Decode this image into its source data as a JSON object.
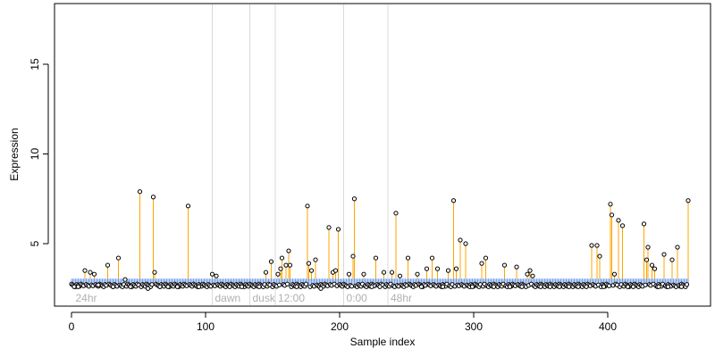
{
  "chart_data": {
    "type": "scatter",
    "title": "",
    "xlabel": "Sample index",
    "ylabel": "Expression",
    "xlim": [
      0,
      460
    ],
    "ylim": [
      2,
      18
    ],
    "x_ticks": [
      0,
      100,
      200,
      300,
      400
    ],
    "y_ticks": [
      5,
      10,
      15
    ],
    "baseline": 2.9,
    "grid": false,
    "colors": {
      "stem": "#ffa500",
      "baseline_marker": "#6495ed",
      "point": "#000000",
      "divider": "#d9d9d9",
      "timepoint_label": "#b0b0b0"
    },
    "timepoints": [
      {
        "x": 3,
        "label": "24hr"
      },
      {
        "x": 107,
        "label": "dawn"
      },
      {
        "x": 135,
        "label": "dusk"
      },
      {
        "x": 154,
        "label": "12:00"
      },
      {
        "x": 205,
        "label": "0:00"
      },
      {
        "x": 238,
        "label": "48hr"
      }
    ],
    "dividers": [
      105,
      133,
      152,
      203,
      236
    ],
    "spikes": [
      {
        "x": 10,
        "y": 3.5
      },
      {
        "x": 14,
        "y": 3.4
      },
      {
        "x": 17,
        "y": 3.3
      },
      {
        "x": 27,
        "y": 3.8
      },
      {
        "x": 35,
        "y": 4.2
      },
      {
        "x": 40,
        "y": 3.0
      },
      {
        "x": 51,
        "y": 7.9
      },
      {
        "x": 61,
        "y": 7.6
      },
      {
        "x": 62,
        "y": 3.4
      },
      {
        "x": 87,
        "y": 7.1
      },
      {
        "x": 105,
        "y": 3.3
      },
      {
        "x": 108,
        "y": 3.2
      },
      {
        "x": 145,
        "y": 3.4
      },
      {
        "x": 149,
        "y": 4.0
      },
      {
        "x": 154,
        "y": 3.3
      },
      {
        "x": 156,
        "y": 3.6
      },
      {
        "x": 157,
        "y": 4.2
      },
      {
        "x": 160,
        "y": 3.8
      },
      {
        "x": 162,
        "y": 4.6
      },
      {
        "x": 163,
        "y": 3.8
      },
      {
        "x": 176,
        "y": 7.1
      },
      {
        "x": 177,
        "y": 3.9
      },
      {
        "x": 179,
        "y": 3.5
      },
      {
        "x": 182,
        "y": 4.1
      },
      {
        "x": 192,
        "y": 5.9
      },
      {
        "x": 195,
        "y": 3.4
      },
      {
        "x": 197,
        "y": 3.5
      },
      {
        "x": 199,
        "y": 5.8
      },
      {
        "x": 207,
        "y": 3.3
      },
      {
        "x": 210,
        "y": 4.3
      },
      {
        "x": 211,
        "y": 7.5
      },
      {
        "x": 218,
        "y": 3.3
      },
      {
        "x": 227,
        "y": 4.2
      },
      {
        "x": 233,
        "y": 3.4
      },
      {
        "x": 239,
        "y": 3.4
      },
      {
        "x": 242,
        "y": 6.7
      },
      {
        "x": 245,
        "y": 3.2
      },
      {
        "x": 251,
        "y": 4.2
      },
      {
        "x": 258,
        "y": 3.3
      },
      {
        "x": 265,
        "y": 3.6
      },
      {
        "x": 269,
        "y": 4.2
      },
      {
        "x": 273,
        "y": 3.6
      },
      {
        "x": 281,
        "y": 3.5
      },
      {
        "x": 285,
        "y": 7.4
      },
      {
        "x": 287,
        "y": 3.6
      },
      {
        "x": 290,
        "y": 5.2
      },
      {
        "x": 294,
        "y": 5.0
      },
      {
        "x": 306,
        "y": 3.9
      },
      {
        "x": 309,
        "y": 4.2
      },
      {
        "x": 323,
        "y": 3.8
      },
      {
        "x": 332,
        "y": 3.7
      },
      {
        "x": 340,
        "y": 3.3
      },
      {
        "x": 342,
        "y": 3.5
      },
      {
        "x": 344,
        "y": 3.2
      },
      {
        "x": 388,
        "y": 4.9
      },
      {
        "x": 392,
        "y": 4.9
      },
      {
        "x": 394,
        "y": 4.3
      },
      {
        "x": 402,
        "y": 7.2
      },
      {
        "x": 403,
        "y": 6.6
      },
      {
        "x": 405,
        "y": 3.3
      },
      {
        "x": 408,
        "y": 6.3
      },
      {
        "x": 411,
        "y": 6.0
      },
      {
        "x": 427,
        "y": 6.1
      },
      {
        "x": 429,
        "y": 4.1
      },
      {
        "x": 430,
        "y": 4.8
      },
      {
        "x": 433,
        "y": 3.8
      },
      {
        "x": 435,
        "y": 3.6
      },
      {
        "x": 442,
        "y": 4.4
      },
      {
        "x": 448,
        "y": 4.1
      },
      {
        "x": 452,
        "y": 4.8
      },
      {
        "x": 460,
        "y": 7.4
      }
    ],
    "lows": [
      {
        "x": 2,
        "y": 2.6
      },
      {
        "x": 5,
        "y": 2.6
      },
      {
        "x": 20,
        "y": 2.7
      },
      {
        "x": 31,
        "y": 2.6
      },
      {
        "x": 44,
        "y": 2.6
      },
      {
        "x": 57,
        "y": 2.5
      },
      {
        "x": 66,
        "y": 2.6
      },
      {
        "x": 72,
        "y": 2.6
      },
      {
        "x": 79,
        "y": 2.6
      },
      {
        "x": 95,
        "y": 2.6
      },
      {
        "x": 118,
        "y": 2.6
      },
      {
        "x": 127,
        "y": 2.6
      },
      {
        "x": 140,
        "y": 2.6
      },
      {
        "x": 168,
        "y": 2.6
      },
      {
        "x": 186,
        "y": 2.5
      },
      {
        "x": 224,
        "y": 2.6
      },
      {
        "x": 230,
        "y": 2.6
      },
      {
        "x": 261,
        "y": 2.6
      },
      {
        "x": 277,
        "y": 2.6
      },
      {
        "x": 299,
        "y": 2.6
      },
      {
        "x": 315,
        "y": 2.6
      },
      {
        "x": 327,
        "y": 2.6
      },
      {
        "x": 336,
        "y": 2.6
      },
      {
        "x": 350,
        "y": 2.6
      },
      {
        "x": 357,
        "y": 2.6
      },
      {
        "x": 364,
        "y": 2.6
      },
      {
        "x": 371,
        "y": 2.6
      },
      {
        "x": 378,
        "y": 2.6
      },
      {
        "x": 384,
        "y": 2.6
      },
      {
        "x": 397,
        "y": 2.6
      },
      {
        "x": 415,
        "y": 2.6
      },
      {
        "x": 419,
        "y": 2.6
      },
      {
        "x": 438,
        "y": 2.6
      },
      {
        "x": 445,
        "y": 2.6
      },
      {
        "x": 455,
        "y": 2.6
      }
    ]
  }
}
